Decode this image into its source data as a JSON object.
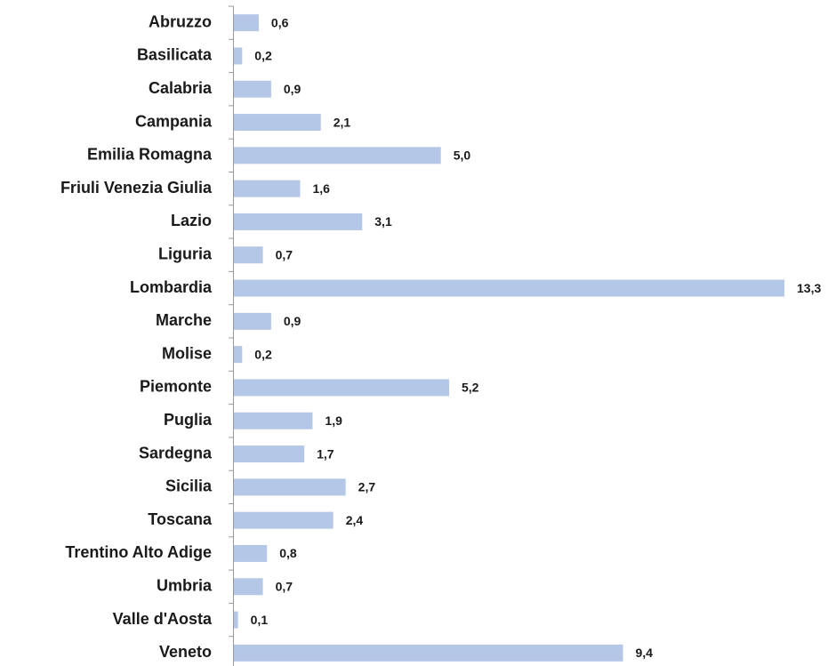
{
  "chart_data": {
    "type": "bar",
    "orientation": "horizontal",
    "categories": [
      "Abruzzo",
      "Basilicata",
      "Calabria",
      "Campania",
      "Emilia Romagna",
      "Friuli Venezia Giulia",
      "Lazio",
      "Liguria",
      "Lombardia",
      "Marche",
      "Molise",
      "Piemonte",
      "Puglia",
      "Sardegna",
      "Sicilia",
      "Toscana",
      "Trentino Alto Adige",
      "Umbria",
      "Valle d'Aosta",
      "Veneto"
    ],
    "values": [
      0.6,
      0.2,
      0.9,
      2.1,
      5.0,
      1.6,
      3.1,
      0.7,
      13.3,
      0.9,
      0.2,
      5.2,
      1.9,
      1.7,
      2.7,
      2.4,
      0.8,
      0.7,
      0.1,
      9.4
    ],
    "value_labels": [
      "0,6",
      "0,2",
      "0,9",
      "2,1",
      "5,0",
      "1,6",
      "3,1",
      "0,7",
      "13,3",
      "0,9",
      "0,2",
      "5,2",
      "1,9",
      "1,7",
      "2,7",
      "2,4",
      "0,8",
      "0,7",
      "0,1",
      "9,4"
    ],
    "color": "#b4c7e7"
  }
}
